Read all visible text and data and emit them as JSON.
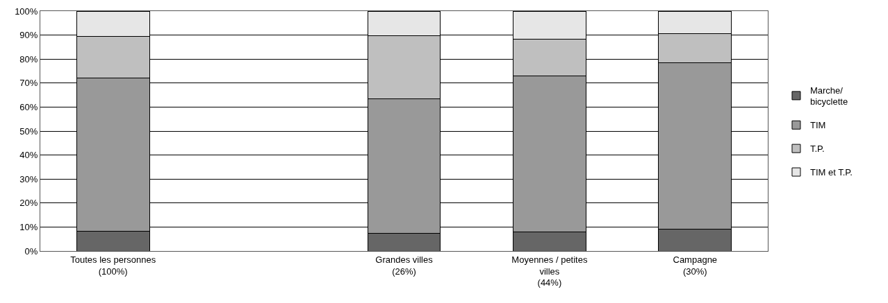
{
  "chart_data": {
    "type": "bar",
    "stacked": true,
    "categories": [
      "Toutes les personnes\n(100%)",
      null,
      "Grandes villes\n(26%)",
      "Moyennes / petites\nvilles\n(44%)",
      "Campagne\n(30%)"
    ],
    "series": [
      {
        "name": "Marche/\nbicyclette",
        "color": "#666666",
        "values": [
          8.3,
          null,
          7.4,
          8.0,
          9.1
        ]
      },
      {
        "name": "TIM",
        "color": "#999999",
        "values": [
          63.7,
          null,
          55.9,
          65.0,
          69.5
        ]
      },
      {
        "name": "T.P.",
        "color": "#bfbfbf",
        "values": [
          17.4,
          null,
          26.3,
          15.4,
          12.0
        ]
      },
      {
        "name": "TIM et T.P.",
        "color": "#e6e6e6",
        "values": [
          10.6,
          null,
          10.4,
          11.6,
          9.4
        ]
      }
    ],
    "ylim": [
      0,
      100
    ],
    "yticks": [
      {
        "value": 0,
        "label": "0%"
      },
      {
        "value": 10,
        "label": "10%"
      },
      {
        "value": 20,
        "label": "20%"
      },
      {
        "value": 30,
        "label": "30%"
      },
      {
        "value": 40,
        "label": "40%"
      },
      {
        "value": 50,
        "label": "50%"
      },
      {
        "value": 60,
        "label": "60%"
      },
      {
        "value": 70,
        "label": "70%"
      },
      {
        "value": 80,
        "label": "80%"
      },
      {
        "value": 90,
        "label": "90%"
      },
      {
        "value": 100,
        "label": "100%"
      }
    ],
    "grid": "y",
    "legend": "right"
  }
}
